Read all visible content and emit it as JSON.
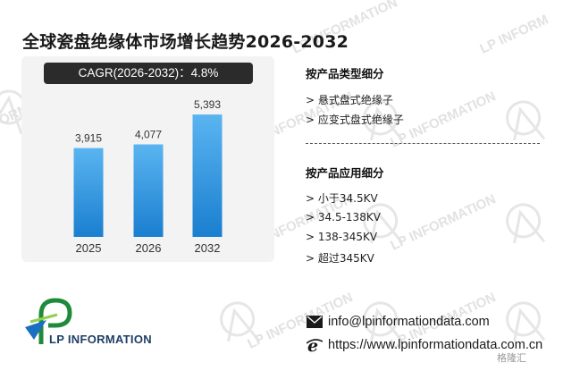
{
  "title": "全球瓷盘绝缘体市场增长趋势2026-2032",
  "cagr_label": "CAGR(2026-2032)：4.8%",
  "chart_data": {
    "type": "bar",
    "categories": [
      "2025",
      "2026",
      "2032"
    ],
    "values": [
      3915,
      4077,
      5393
    ],
    "value_labels": [
      "3,915",
      "4,077",
      "5,393"
    ],
    "ylim": [
      0,
      6500
    ],
    "grid": false,
    "bar_color_top": "#5ab4f0",
    "bar_color_bottom": "#1a7fd0"
  },
  "by_product": {
    "heading": "按产品类型细分",
    "items": [
      "> 悬式盘式绝缘子",
      "> 应变式盘式绝缘子"
    ]
  },
  "by_application": {
    "heading": "按产品应用细分",
    "items": [
      "> 小于34.5KV",
      "> 34.5-138KV",
      "> 138-345KV",
      "> 超过345KV"
    ]
  },
  "logo": {
    "text": "LP INFORMATION",
    "icon": "lp-logo-icon"
  },
  "watermark_text": "LP INFORMATION",
  "contact": {
    "email": "info@lpinformationdata.com",
    "email_icon": "envelope-icon",
    "website": "https://www.lpinformationdata.com.cn",
    "website_icon": "ie-browser-icon"
  },
  "badge": "格隆汇"
}
